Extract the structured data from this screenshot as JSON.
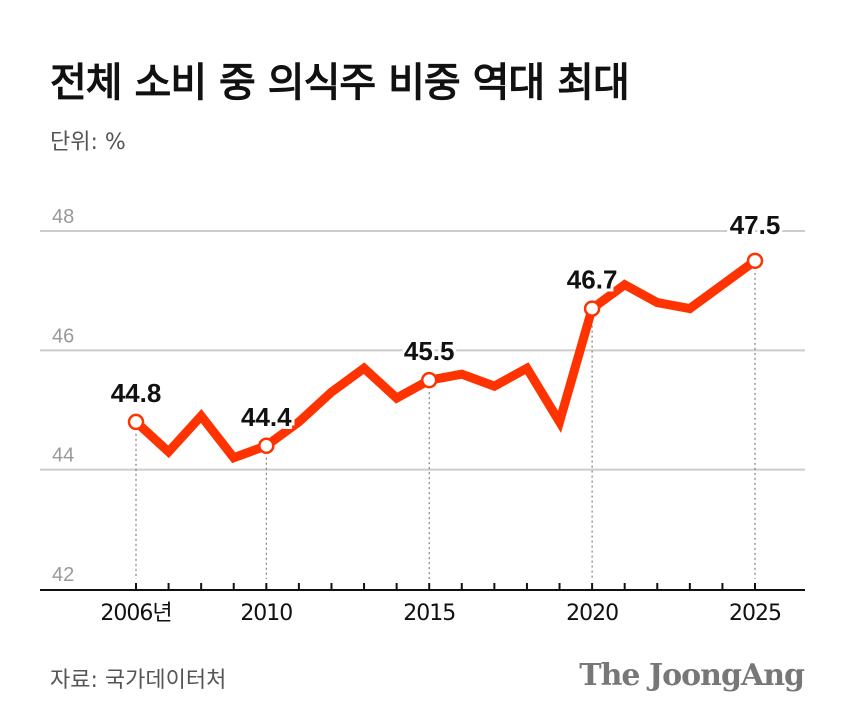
{
  "title": "전체 소비 중 의식주 비중 역대 최대",
  "unit_label": "단위: %",
  "source": "자료: 국가데이터처",
  "logo": "The JoongAng",
  "colors": {
    "line": "#ff3300",
    "grid": "#cccccc",
    "axis": "#111111",
    "tick_label": "#999999"
  },
  "chart_data": {
    "type": "line",
    "x": [
      2006,
      2007,
      2008,
      2009,
      2010,
      2011,
      2012,
      2013,
      2014,
      2015,
      2016,
      2017,
      2018,
      2019,
      2020,
      2021,
      2022,
      2023,
      2024,
      2025
    ],
    "x_tick_labels": [
      {
        "x": 2006,
        "label": "2006년"
      },
      {
        "x": 2010,
        "label": "2010"
      },
      {
        "x": 2015,
        "label": "2015"
      },
      {
        "x": 2020,
        "label": "2020"
      },
      {
        "x": 2025,
        "label": "2025"
      }
    ],
    "series": [
      {
        "values": [
          44.8,
          44.3,
          44.9,
          44.2,
          44.4,
          44.8,
          45.3,
          45.7,
          45.2,
          45.5,
          45.6,
          45.4,
          45.7,
          44.8,
          46.7,
          47.1,
          46.8,
          46.7,
          47.1,
          47.5
        ]
      }
    ],
    "data_labels": [
      {
        "x": 2006,
        "label": "44.8"
      },
      {
        "x": 2010,
        "label": "44.4"
      },
      {
        "x": 2015,
        "label": "45.5"
      },
      {
        "x": 2020,
        "label": "46.7"
      },
      {
        "x": 2025,
        "label": "47.5"
      }
    ],
    "y_ticks": [
      "42",
      "44",
      "46",
      "48"
    ],
    "ylim": [
      42,
      48
    ],
    "grid": true
  }
}
